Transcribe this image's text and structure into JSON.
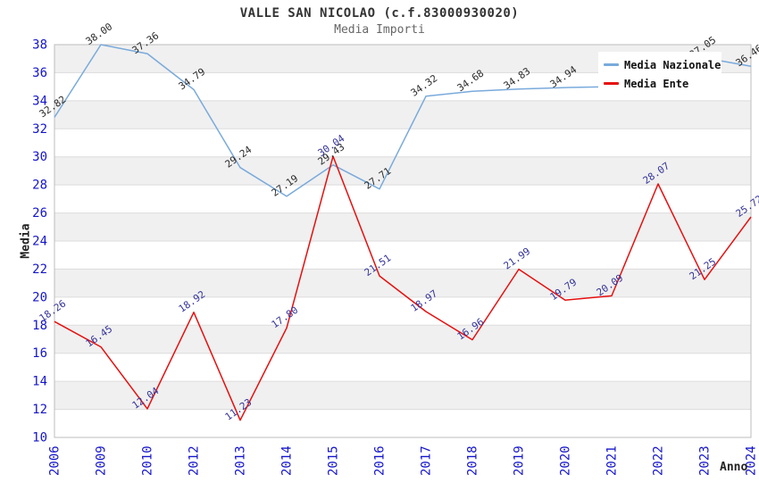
{
  "chart_data": {
    "type": "line",
    "title": "VALLE SAN NICOLAO (c.f.83000930020)",
    "subtitle": "Media Importi",
    "xlabel": "Anno",
    "ylabel": "Media",
    "ylim": [
      10,
      38
    ],
    "y_ticks": [
      10,
      12,
      14,
      16,
      18,
      20,
      22,
      24,
      26,
      28,
      30,
      32,
      34,
      36,
      38
    ],
    "categories": [
      "2006",
      "2009",
      "2010",
      "2012",
      "2013",
      "2014",
      "2015",
      "2016",
      "2017",
      "2018",
      "2019",
      "2020",
      "2021",
      "2022",
      "2023",
      "2024"
    ],
    "series": [
      {
        "name": "Media Nazionale",
        "color": "#79aadb",
        "label_color": "#2b2b2b",
        "values": [
          32.82,
          38.0,
          37.36,
          34.79,
          29.24,
          27.19,
          29.43,
          27.71,
          34.32,
          34.68,
          34.83,
          34.94,
          35.0,
          36.0,
          37.05,
          36.46
        ],
        "labels": [
          "32.82",
          "38.00",
          "37.36",
          "34.79",
          "29.24",
          "27.19",
          "29.43",
          "27.71",
          "34.32",
          "34.68",
          "34.83",
          "34.94",
          "",
          "",
          "37.05",
          "36.46"
        ]
      },
      {
        "name": "Media Ente",
        "color": "#e60f0f",
        "label_color": "#333399",
        "values": [
          18.26,
          16.45,
          12.04,
          18.92,
          11.23,
          17.8,
          30.04,
          21.51,
          18.97,
          16.96,
          21.99,
          19.79,
          20.09,
          28.07,
          21.25,
          25.72
        ],
        "labels": [
          "18.26",
          "16.45",
          "12.04",
          "18.92",
          "11.23",
          "17.80",
          "30.04",
          "21.51",
          "18.97",
          "16.96",
          "21.99",
          "19.79",
          "20.09",
          "28.07",
          "21.25",
          "25.72"
        ]
      }
    ],
    "grid": "horizontal-bands",
    "legend_position": "top-right-inside",
    "style": {
      "tick_color": "#1414cc",
      "band_color": "#f0f0f0",
      "grid_color": "#dcdcdc",
      "border_color": "#bdbdbd",
      "title_color": "#333333",
      "subtitle_color": "#666666"
    }
  }
}
